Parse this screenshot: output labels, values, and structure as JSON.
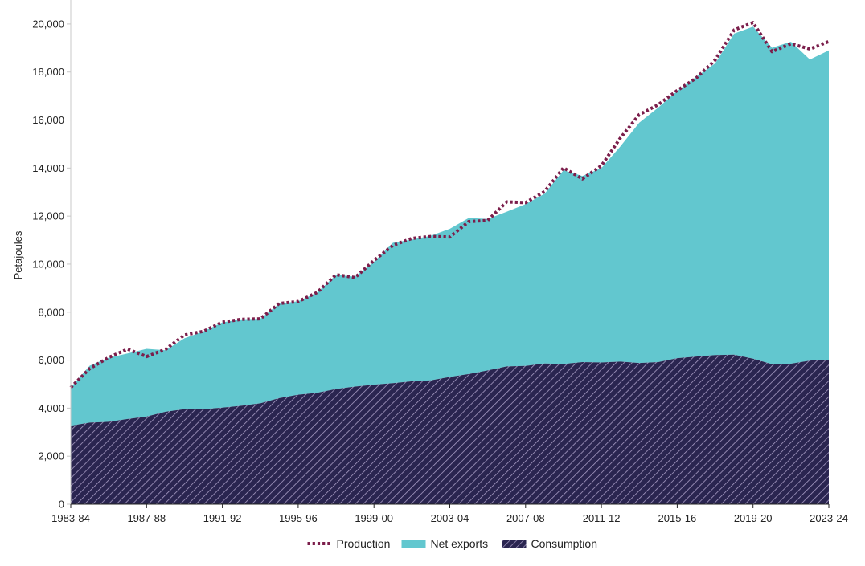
{
  "chart_data": {
    "type": "area",
    "title": "",
    "xlabel": "",
    "ylabel": "Petajoules",
    "ylim": [
      0,
      21000
    ],
    "yticks": [
      0,
      2000,
      4000,
      6000,
      8000,
      10000,
      12000,
      14000,
      16000,
      18000,
      20000
    ],
    "ytick_labels": [
      "0",
      "2,000",
      "4,000",
      "6,000",
      "8,000",
      "10,000",
      "12,000",
      "14,000",
      "16,000",
      "18,000",
      "20,000"
    ],
    "x": [
      "1983-84",
      "1984-85",
      "1985-86",
      "1986-87",
      "1987-88",
      "1988-89",
      "1989-90",
      "1990-91",
      "1991-92",
      "1992-93",
      "1993-94",
      "1994-95",
      "1995-96",
      "1996-97",
      "1997-98",
      "1998-99",
      "1999-00",
      "2000-01",
      "2001-02",
      "2002-03",
      "2003-04",
      "2004-05",
      "2005-06",
      "2006-07",
      "2007-08",
      "2008-09",
      "2009-10",
      "2010-11",
      "2011-12",
      "2012-13",
      "2013-14",
      "2014-15",
      "2015-16",
      "2016-17",
      "2017-18",
      "2018-19",
      "2019-20",
      "2020-21",
      "2021-22",
      "2022-23",
      "2023-24"
    ],
    "xtick_labels": [
      "1983-84",
      "1987-88",
      "1991-92",
      "1995-96",
      "1999-00",
      "2003-04",
      "2007-08",
      "2011-12",
      "2015-16",
      "2019-20",
      "2023-24"
    ],
    "grid": false,
    "legend_position": "bottom-center",
    "series": [
      {
        "name": "Consumption",
        "kind": "area-hatched",
        "color": "#2a2550",
        "hatch_color": "#a89cc4",
        "values": [
          3270,
          3400,
          3430,
          3550,
          3650,
          3850,
          3960,
          3960,
          4020,
          4100,
          4200,
          4420,
          4560,
          4640,
          4800,
          4900,
          4980,
          5040,
          5120,
          5160,
          5300,
          5420,
          5570,
          5740,
          5760,
          5860,
          5840,
          5920,
          5900,
          5940,
          5880,
          5920,
          6080,
          6150,
          6210,
          6230,
          6060,
          5830,
          5850,
          5980,
          6020
        ]
      },
      {
        "name": "Net exports",
        "kind": "area-stacked",
        "color": "#62c7cf",
        "values": [
          1590,
          2370,
          2670,
          2730,
          2820,
          2560,
          2950,
          3240,
          3550,
          3600,
          3520,
          3930,
          3890,
          4180,
          4750,
          4570,
          5120,
          5850,
          5900,
          6020,
          6170,
          6500,
          6310,
          6440,
          6740,
          7070,
          8070,
          7750,
          8100,
          8960,
          10010,
          10600,
          11130,
          11650,
          12150,
          13370,
          13830,
          13180,
          13410,
          12540,
          12880
        ]
      },
      {
        "name": "Production",
        "kind": "line-dotted",
        "color": "#7b1e4b",
        "values": [
          4860,
          5650,
          6110,
          6460,
          6150,
          6450,
          7050,
          7200,
          7580,
          7700,
          7720,
          8360,
          8440,
          8820,
          9560,
          9440,
          10150,
          10780,
          11070,
          11150,
          11130,
          11770,
          11820,
          12590,
          12560,
          13020,
          14010,
          13550,
          14100,
          15250,
          16230,
          16640,
          17230,
          17750,
          18500,
          19750,
          20060,
          18850,
          19180,
          18960,
          19270
        ]
      }
    ]
  }
}
